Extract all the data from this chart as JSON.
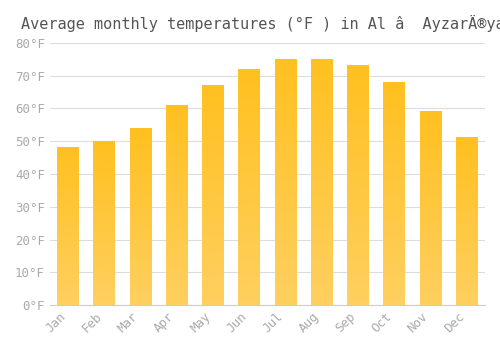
{
  "title": "Average monthly temperatures (°F ) in Al â  AyzarÄ®yah",
  "months": [
    "Jan",
    "Feb",
    "Mar",
    "Apr",
    "May",
    "Jun",
    "Jul",
    "Aug",
    "Sep",
    "Oct",
    "Nov",
    "Dec"
  ],
  "values": [
    48,
    50,
    54,
    61,
    67,
    72,
    75,
    75,
    73,
    68,
    59,
    51
  ],
  "bar_color_top": "#FFC020",
  "bar_color_bottom": "#FFD060",
  "background_color": "#ffffff",
  "grid_color": "#dddddd",
  "tick_label_color": "#aaaaaa",
  "title_color": "#555555",
  "ylim": [
    0,
    80
  ],
  "yticks": [
    0,
    10,
    20,
    30,
    40,
    50,
    60,
    70,
    80
  ],
  "ytick_labels": [
    "0°F",
    "10°F",
    "20°F",
    "30°F",
    "40°F",
    "50°F",
    "60°F",
    "70°F",
    "80°F"
  ],
  "title_fontsize": 11,
  "tick_fontsize": 9,
  "bar_width": 0.6
}
